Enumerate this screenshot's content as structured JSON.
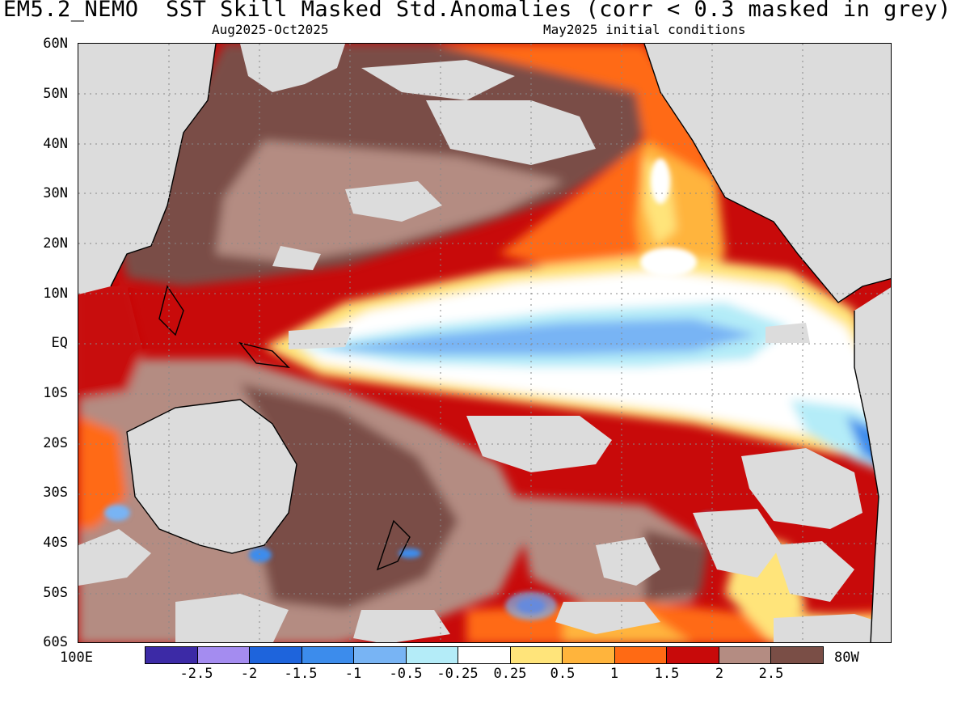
{
  "title": "EM5.2_NEMO  SST Skill Masked Std.Anomalies (corr < 0.3 masked in grey)",
  "subtitle_left": "Aug2025-Oct2025",
  "subtitle_right": "May2025 initial conditions",
  "lat_labels": [
    "60N",
    "50N",
    "40N",
    "30N",
    "20N",
    "10N",
    "EQ",
    "10S",
    "20S",
    "30S",
    "40S",
    "50S",
    "60S"
  ],
  "lon_left_label": "100E",
  "lon_right_label": "80W",
  "colorbar": {
    "colors": [
      "#3c2aa6",
      "#a48cf0",
      "#1e64dc",
      "#3c8cec",
      "#78b4f4",
      "#b4ecf8",
      "#ffffff",
      "#ffe47a",
      "#ffb43c",
      "#ff6a14",
      "#c80a0a",
      "#b48c82",
      "#7a4e46"
    ],
    "labels": [
      "-2.5",
      "-2",
      "-1.5",
      "-1",
      "-0.5",
      "-0.25",
      "0.25",
      "0.5",
      "1",
      "1.5",
      "2",
      "2.5"
    ]
  },
  "colors": {
    "mask_grey": "#dcdcdc",
    "coastline": "#000000"
  }
}
